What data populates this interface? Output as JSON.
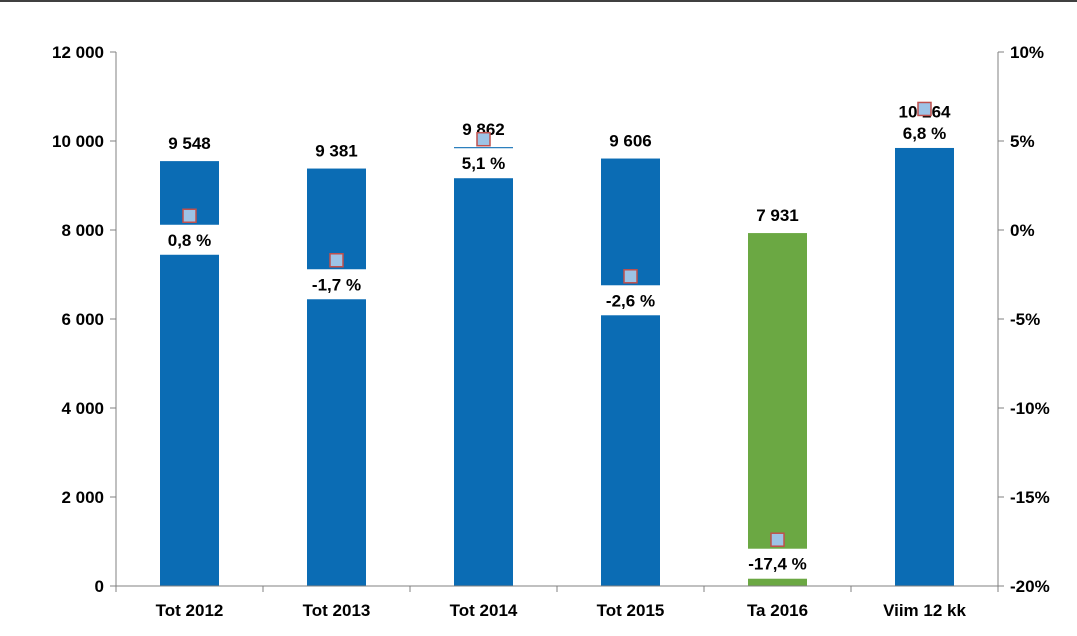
{
  "chart_data": {
    "type": "bar",
    "categories": [
      "Tot 2012",
      "Tot 2013",
      "Tot 2014",
      "Tot 2015",
      "Ta 2016",
      "Viim 12 kk"
    ],
    "series": [
      {
        "values": [
          9548,
          9381,
          9862,
          9606,
          7931,
          10264
        ],
        "value_labels": [
          "9 548",
          "9 381",
          "9 862",
          "9 606",
          "7 931",
          "10 264"
        ],
        "axis": "left",
        "colors": [
          "#0b6cb4",
          "#0b6cb4",
          "#0b6cb4",
          "#0b6cb4",
          "#6ba843",
          "#0b6cb4"
        ]
      },
      {
        "values": [
          0.8,
          -1.7,
          5.1,
          -2.6,
          -17.4,
          6.8
        ],
        "value_labels": [
          "0,8 %",
          "-1,7 %",
          "5,1 %",
          "-2,6 %",
          "-17,4 %",
          "6,8 %"
        ],
        "axis": "right",
        "marker": "square",
        "marker_fill": "#9dc3e6",
        "marker_stroke": "#c0504d"
      }
    ],
    "y_left": {
      "ylim": [
        0,
        12000
      ],
      "ticks": [
        0,
        2000,
        4000,
        6000,
        8000,
        10000,
        12000
      ],
      "tick_labels": [
        "0",
        "2 000",
        "4 000",
        "6 000",
        "8 000",
        "10 000",
        "12 000"
      ]
    },
    "y_right": {
      "ylim": [
        -20,
        10
      ],
      "ticks": [
        -20,
        -15,
        -10,
        -5,
        0,
        5,
        10
      ],
      "tick_labels": [
        "-20%",
        "-15%",
        "-10%",
        "-5%",
        "0%",
        "5%",
        "10%"
      ]
    },
    "grid": false,
    "legend": "none"
  }
}
